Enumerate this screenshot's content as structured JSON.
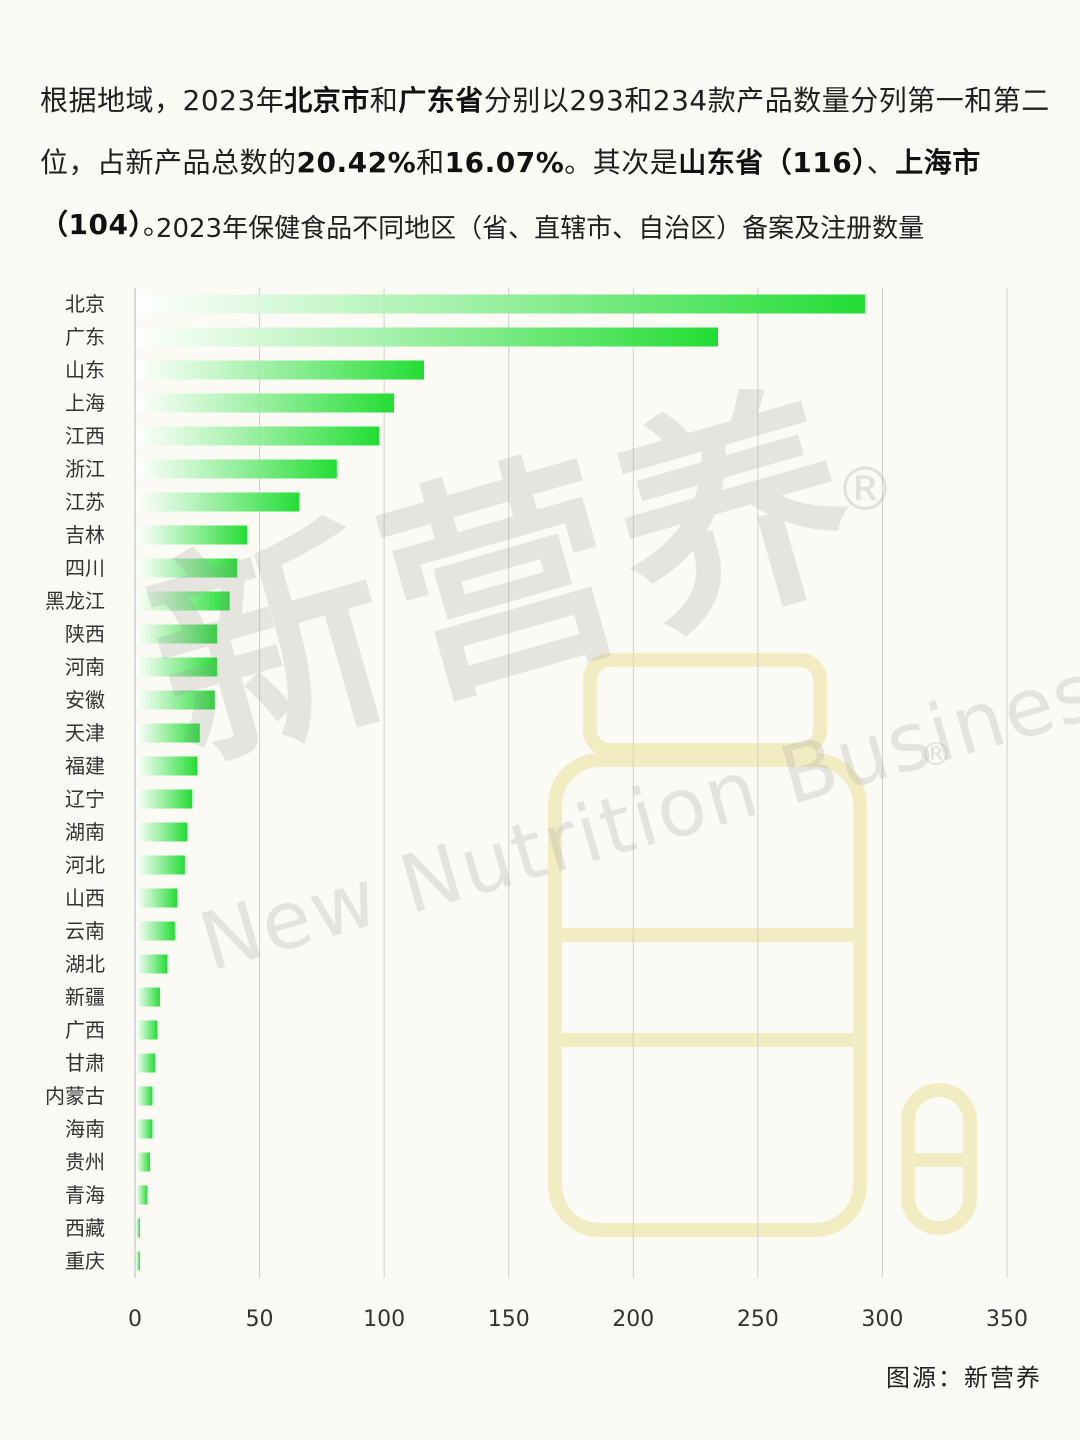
{
  "intro": {
    "p1": "根据地域，2023年",
    "b1": "北京市",
    "p2": "和",
    "b2": "广东省",
    "p3": "分别以293和234款产品数量分列第一和第二位，占新产品总数的",
    "b3": "20.42%",
    "p4": "和",
    "b4": "16.07%",
    "p5": "。其次是",
    "b5": "山东省（116）",
    "p6": "、",
    "b6": "上海市（104）",
    "p7": "。"
  },
  "watermark": {
    "cn": "新营养",
    "en": "New Nutrition Business",
    "reg": "®"
  },
  "source": "图源：新营养",
  "colors": {
    "bar_start": "#ffffff",
    "bar_end": "#22dd33",
    "grid": "#cfcfcf",
    "bottle": "#f2ecc2"
  },
  "chart_data": {
    "type": "bar",
    "orientation": "horizontal",
    "title": "2023年保健食品不同地区（省、直辖市、自治区）备案及注册数量",
    "categories": [
      "北京",
      "广东",
      "山东",
      "上海",
      "江西",
      "浙江",
      "江苏",
      "吉林",
      "四川",
      "黑龙江",
      "陕西",
      "河南",
      "安徽",
      "天津",
      "福建",
      "辽宁",
      "湖南",
      "河北",
      "山西",
      "云南",
      "湖北",
      "新疆",
      "广西",
      "甘肃",
      "内蒙古",
      "海南",
      "贵州",
      "青海",
      "西藏",
      "重庆"
    ],
    "values": [
      293,
      234,
      116,
      104,
      98,
      81,
      66,
      45,
      41,
      38,
      33,
      33,
      32,
      26,
      25,
      23,
      21,
      20,
      17,
      16,
      13,
      10,
      9,
      8,
      7,
      7,
      6,
      5,
      2,
      2
    ],
    "xlim": [
      0,
      350
    ],
    "xticks": [
      0,
      50,
      100,
      150,
      200,
      250,
      300,
      350
    ],
    "grid": true,
    "legend": "none"
  }
}
